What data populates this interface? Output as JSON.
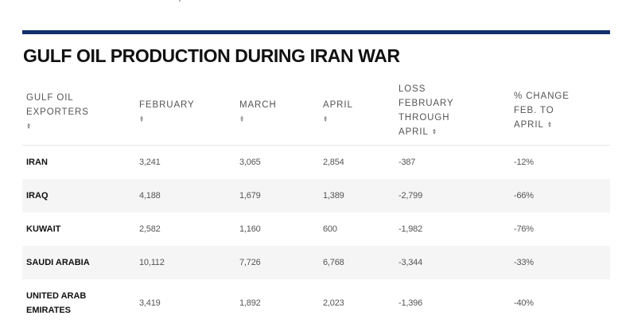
{
  "title": "GULF OIL PRODUCTION DURING IRAN WAR",
  "sort_icon": "sort-arrows-icon",
  "colors": {
    "rule": "#13306e",
    "stripe": "#f5f5f5",
    "header_text": "#555555"
  },
  "table": {
    "headers": [
      {
        "lines": [
          "GULF OIL",
          "EXPORTERS"
        ],
        "sort_own_line": true
      },
      {
        "lines": [
          "FEBRUARY"
        ],
        "sort_own_line": true
      },
      {
        "lines": [
          "MARCH"
        ],
        "sort_own_line": true
      },
      {
        "lines": [
          "APRIL"
        ],
        "sort_own_line": true
      },
      {
        "lines": [
          "LOSS",
          "FEBRUARY",
          "THROUGH",
          "APRIL"
        ],
        "sort_own_line": false
      },
      {
        "lines": [
          "% CHANGE",
          "FEB. TO",
          "APRIL"
        ],
        "sort_own_line": false
      }
    ],
    "rows": [
      {
        "country": "IRAN",
        "february": "3,241",
        "march": "3,065",
        "april": "2,854",
        "loss": "-387",
        "change": "-12%"
      },
      {
        "country": "IRAQ",
        "february": "4,188",
        "march": "1,679",
        "april": "1,389",
        "loss": "-2,799",
        "change": "-66%"
      },
      {
        "country": "KUWAIT",
        "february": "2,582",
        "march": "1,160",
        "april": "600",
        "loss": "-1,982",
        "change": "-76%"
      },
      {
        "country": "SAUDI ARABIA",
        "february": "10,112",
        "march": "7,726",
        "april": "6,768",
        "loss": "-3,344",
        "change": "-33%"
      },
      {
        "country": "UNITED ARAB EMIRATES",
        "country_lines": [
          "UNITED ARAB",
          "EMIRATES"
        ],
        "february": "3,419",
        "march": "1,892",
        "april": "2,023",
        "loss": "-1,396",
        "change": "-40%"
      }
    ]
  }
}
